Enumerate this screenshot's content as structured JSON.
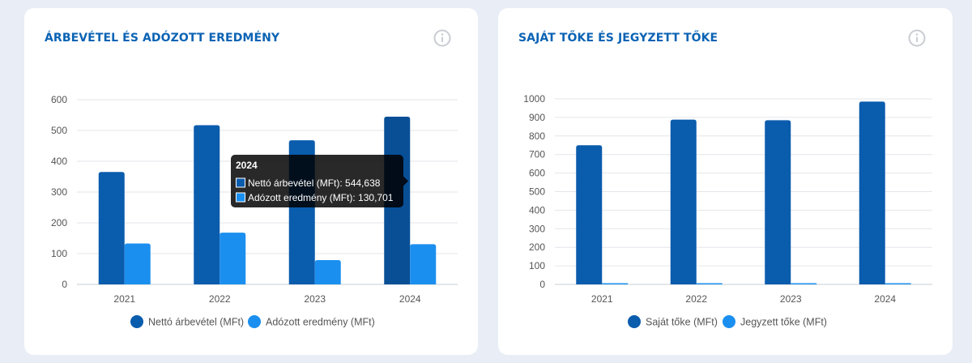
{
  "left_card": {
    "title": "ÁRBEVÉTEL ÉS ADÓZOTT EREDMÉNY",
    "tooltip": {
      "title": "2024",
      "line1": "Nettó árbevétel (MFt): 544,638",
      "line2": "Adózott eredmény (MFt): 130,701"
    }
  },
  "right_card": {
    "title": "SAJÁT TŐKE ÉS JEGYZETT TŐKE"
  },
  "colors": {
    "series_dark": "#0a5cad",
    "series_dark_active": "#084f96",
    "series_light": "#1b8fef",
    "title": "#0b63b4"
  },
  "chart_data": [
    {
      "type": "bar",
      "title": "ÁRBEVÉTEL ÉS ADÓZOTT EREDMÉNY",
      "categories": [
        "2021",
        "2022",
        "2023",
        "2024"
      ],
      "series": [
        {
          "name": "Nettó árbevétel (MFt)",
          "values": [
            365,
            517,
            468,
            544.638
          ]
        },
        {
          "name": "Adózott eredmény (MFt)",
          "values": [
            133,
            168,
            79,
            130.701
          ]
        }
      ],
      "yticks": [
        0,
        100,
        200,
        300,
        400,
        500,
        600
      ],
      "ylim": [
        0,
        600
      ],
      "grid": true,
      "legend": "bottom"
    },
    {
      "type": "bar",
      "title": "SAJÁT TŐKE ÉS JEGYZETT TŐKE",
      "categories": [
        "2021",
        "2022",
        "2023",
        "2024"
      ],
      "series": [
        {
          "name": "Saját tőke (MFt)",
          "values": [
            750,
            888,
            885,
            985
          ]
        },
        {
          "name": "Jegyzett tőke (MFt)",
          "values": [
            3,
            3,
            3,
            3
          ]
        }
      ],
      "yticks": [
        0,
        100,
        200,
        300,
        400,
        500,
        600,
        700,
        800,
        900,
        1000
      ],
      "ylim": [
        0,
        1000
      ],
      "grid": true,
      "legend": "bottom"
    }
  ]
}
